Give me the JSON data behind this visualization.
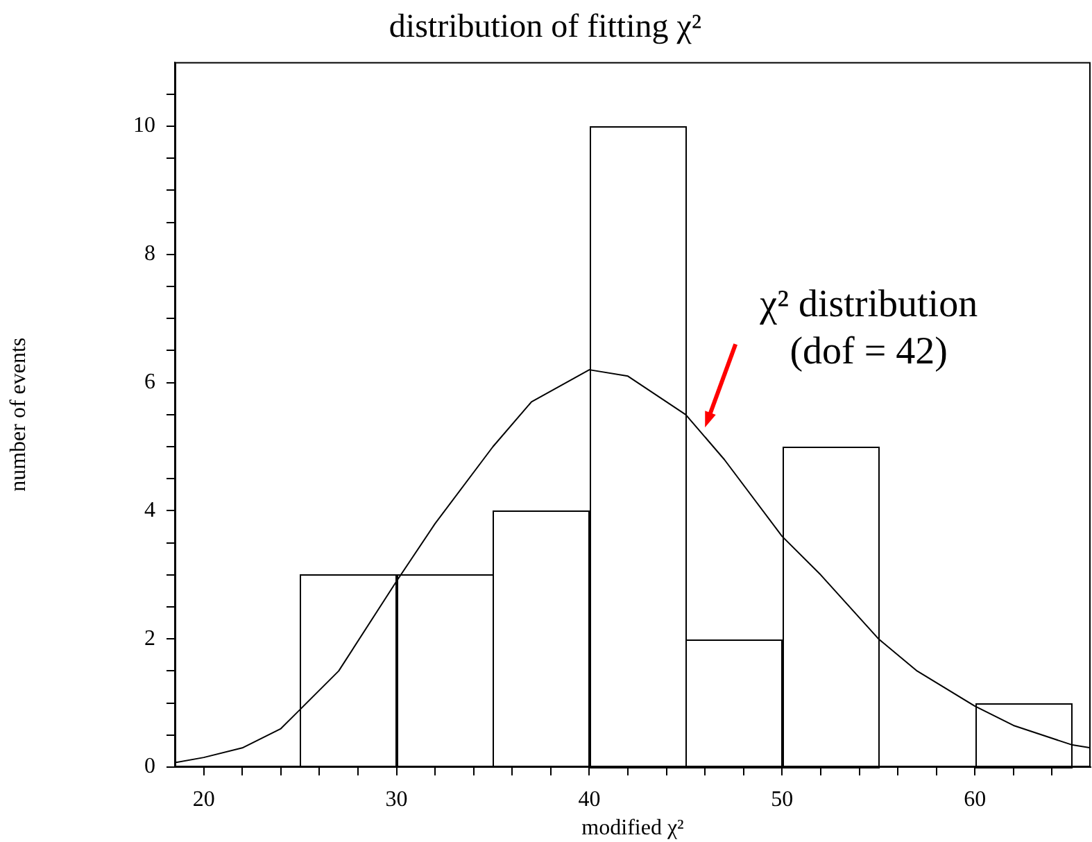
{
  "chart_data": {
    "type": "histogram",
    "title": "distribution of fitting χ²",
    "xlabel": "modified χ²",
    "ylabel": "number of events",
    "bins": [
      25,
      30,
      35,
      40,
      45,
      50,
      55,
      60,
      65
    ],
    "values": [
      3,
      3,
      4,
      10,
      2,
      5,
      0,
      1
    ],
    "color": "#000000",
    "series": [
      {
        "type": "line",
        "color": "#000000",
        "x": [
          18.5,
          20,
          22,
          24,
          25,
          27,
          30,
          32,
          35,
          37,
          40,
          42,
          45,
          47,
          50,
          52,
          55,
          57,
          60,
          62,
          65,
          66
        ],
        "values": [
          0.07,
          0.15,
          0.3,
          0.6,
          0.9,
          1.5,
          2.9,
          3.8,
          5.0,
          5.7,
          6.2,
          6.1,
          5.5,
          4.8,
          3.6,
          3.0,
          2.0,
          1.5,
          0.95,
          0.65,
          0.35,
          0.3
        ]
      }
    ],
    "annotations": [
      {
        "text": "χ² distribution\n(dof = 42)",
        "x": 46,
        "y": 5.3
      }
    ],
    "xlim": [
      18.5,
      66
    ],
    "ylim": [
      0,
      11
    ],
    "xticks": [
      20,
      {
        "value": 22,
        "label": null
      },
      {
        "value": 24,
        "label": null
      },
      {
        "value": 26,
        "label": null
      },
      {
        "value": 28,
        "label": null
      },
      30,
      {
        "value": 32,
        "label": null
      },
      {
        "value": 34,
        "label": null
      },
      {
        "value": 36,
        "label": null
      },
      {
        "value": 38,
        "label": null
      },
      40,
      {
        "value": 42,
        "label": null
      },
      {
        "value": 44,
        "label": null
      },
      {
        "value": 46,
        "label": null
      },
      {
        "value": 48,
        "label": null
      },
      50,
      {
        "value": 52,
        "label": null
      },
      {
        "value": 54,
        "label": null
      },
      {
        "value": 56,
        "label": null
      },
      {
        "value": 58,
        "label": null
      },
      60,
      {
        "value": 62,
        "label": null
      },
      {
        "value": 64,
        "label": null
      }
    ],
    "yticks": [
      0,
      {
        "value": 0.5,
        "label": null
      },
      {
        "value": 1,
        "label": null
      },
      {
        "value": 1.5,
        "label": null
      },
      2,
      {
        "value": 2.5,
        "label": null
      },
      {
        "value": 3,
        "label": null
      },
      {
        "value": 3.5,
        "label": null
      },
      4,
      {
        "value": 4.5,
        "label": null
      },
      {
        "value": 5,
        "label": null
      },
      {
        "value": 5.5,
        "label": null
      },
      6,
      {
        "value": 6.5,
        "label": null
      },
      {
        "value": 7,
        "label": null
      },
      {
        "value": 7.5,
        "label": null
      },
      8,
      {
        "value": 8.5,
        "label": null
      },
      {
        "value": 9,
        "label": null
      },
      {
        "value": 9.5,
        "label": null
      },
      10,
      {
        "value": 10.5,
        "label": null
      }
    ],
    "grid": false,
    "legend": false
  }
}
